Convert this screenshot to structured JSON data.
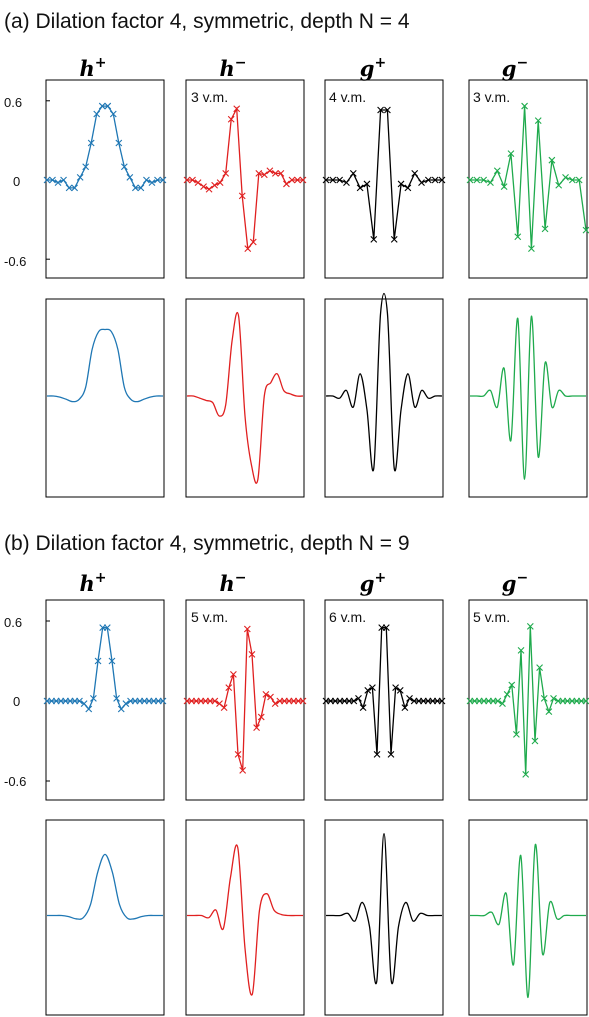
{
  "colors": {
    "blue": "#1f77b4",
    "red": "#e02020",
    "black": "#000000",
    "green": "#1faa4d"
  },
  "sections": [
    {
      "title": "(a) Dilation factor 4, symmetric, depth N = 4",
      "columns": [
        {
          "symbol": "h",
          "sup": "+",
          "color": "blue"
        },
        {
          "symbol": "h",
          "sup": "−",
          "color": "red"
        },
        {
          "symbol": "g",
          "sup": "+",
          "color": "black"
        },
        {
          "symbol": "g",
          "sup": "−",
          "color": "green"
        }
      ],
      "y_ticks": [
        "0.6",
        "0",
        "-0.6"
      ],
      "vm_labels": [
        "",
        "3 v.m.",
        "4 v.m.",
        "3 v.m."
      ]
    },
    {
      "title": "(b) Dilation factor 4, symmetric, depth N = 9",
      "columns": [
        {
          "symbol": "h",
          "sup": "+",
          "color": "blue"
        },
        {
          "symbol": "h",
          "sup": "−",
          "color": "red"
        },
        {
          "symbol": "g",
          "sup": "+",
          "color": "black"
        },
        {
          "symbol": "g",
          "sup": "−",
          "color": "green"
        }
      ],
      "y_ticks": [
        "0.6",
        "0",
        "-0.6"
      ],
      "vm_labels": [
        "",
        "5 v.m.",
        "6 v.m.",
        "5 v.m."
      ]
    }
  ],
  "chart_data": [
    {
      "type": "line",
      "section": "a",
      "panel": "h+ filter",
      "ylim": [
        -0.75,
        0.75
      ],
      "markers": "x",
      "values": [
        0,
        0,
        -0.02,
        0,
        -0.06,
        -0.06,
        0.02,
        0.1,
        0.28,
        0.5,
        0.56,
        0.56,
        0.5,
        0.28,
        0.1,
        0.02,
        -0.06,
        -0.06,
        0,
        -0.02,
        0,
        0
      ]
    },
    {
      "type": "line",
      "section": "a",
      "panel": "h- filter",
      "ylim": [
        -0.75,
        0.75
      ],
      "markers": "x",
      "values": [
        0,
        0,
        -0.02,
        -0.05,
        -0.07,
        -0.04,
        -0.02,
        0.05,
        0.46,
        0.54,
        -0.12,
        -0.52,
        -0.47,
        0.05,
        0.04,
        0.07,
        0.05,
        0.05,
        -0.03,
        0,
        0,
        0
      ]
    },
    {
      "type": "line",
      "section": "a",
      "panel": "g+ filter",
      "ylim": [
        -0.75,
        0.75
      ],
      "markers": "x",
      "values": [
        0,
        0,
        0,
        -0.02,
        0.05,
        -0.06,
        -0.03,
        -0.45,
        0.53,
        0.53,
        -0.45,
        -0.03,
        -0.06,
        0.05,
        -0.02,
        0,
        0,
        0
      ]
    },
    {
      "type": "line",
      "section": "a",
      "panel": "g- filter",
      "ylim": [
        -0.75,
        0.75
      ],
      "markers": "x",
      "values": [
        0,
        0,
        0,
        -0.02,
        0.07,
        -0.05,
        0.2,
        -0.43,
        0.56,
        -0.52,
        0.45,
        -0.37,
        0.15,
        -0.04,
        0.02,
        0,
        0,
        -0.38
      ]
    },
    {
      "type": "line",
      "section": "a",
      "panel": "h+ limit",
      "markers": "none",
      "values": [
        0,
        0,
        -0.01,
        -0.03,
        -0.05,
        -0.03,
        0.08,
        0.42,
        0.58,
        0.6,
        0.58,
        0.42,
        0.08,
        -0.03,
        -0.05,
        -0.03,
        -0.01,
        0,
        0
      ]
    },
    {
      "type": "line",
      "section": "a",
      "panel": "h- limit",
      "markers": "none",
      "values": [
        0,
        0,
        -0.02,
        -0.04,
        -0.06,
        -0.18,
        -0.08,
        0.5,
        0.72,
        -0.18,
        -0.62,
        -0.75,
        0.0,
        0.12,
        0.2,
        0.05,
        0.02,
        0,
        0
      ]
    },
    {
      "type": "line",
      "section": "a",
      "panel": "g+ limit",
      "markers": "none",
      "values": [
        0,
        0,
        -0.02,
        0.05,
        -0.1,
        0.2,
        -0.12,
        -0.65,
        0.75,
        0.75,
        -0.65,
        -0.12,
        0.2,
        -0.1,
        0.05,
        -0.02,
        0,
        0
      ]
    },
    {
      "type": "line",
      "section": "a",
      "panel": "g- limit",
      "markers": "none",
      "values": [
        0,
        0,
        0,
        0.05,
        -0.1,
        0.25,
        -0.4,
        0.7,
        -0.75,
        0.72,
        -0.55,
        0.3,
        -0.1,
        0.05,
        0,
        0,
        0,
        0
      ]
    },
    {
      "type": "line",
      "section": "b",
      "panel": "h+ filter",
      "ylim": [
        -0.75,
        0.75
      ],
      "markers": "x",
      "values": [
        0,
        0,
        0,
        0,
        0,
        0,
        0,
        0,
        -0.02,
        -0.06,
        0.02,
        0.3,
        0.55,
        0.55,
        0.3,
        0.02,
        -0.06,
        -0.02,
        0,
        0,
        0,
        0,
        0,
        0,
        0,
        0
      ]
    },
    {
      "type": "line",
      "section": "b",
      "panel": "h- filter",
      "ylim": [
        -0.75,
        0.75
      ],
      "markers": "x",
      "values": [
        0,
        0,
        0,
        0,
        0,
        0,
        0,
        -0.02,
        -0.05,
        0.1,
        0.2,
        -0.4,
        -0.52,
        0.54,
        0.35,
        -0.2,
        -0.12,
        0.05,
        0.03,
        -0.02,
        0,
        0,
        0,
        0,
        0,
        0
      ]
    },
    {
      "type": "line",
      "section": "b",
      "panel": "g+ filter",
      "ylim": [
        -0.75,
        0.75
      ],
      "markers": "x",
      "values": [
        0,
        0,
        0,
        0,
        0,
        0,
        0,
        0.02,
        -0.05,
        0.08,
        0.1,
        -0.4,
        0.55,
        0.55,
        -0.4,
        0.1,
        0.08,
        -0.05,
        0.02,
        0,
        0,
        0,
        0,
        0,
        0,
        0
      ]
    },
    {
      "type": "line",
      "section": "b",
      "panel": "g- filter",
      "ylim": [
        -0.75,
        0.75
      ],
      "markers": "x",
      "values": [
        0,
        0,
        0,
        0,
        0,
        0,
        0,
        -0.02,
        0.05,
        0.12,
        -0.25,
        0.38,
        -0.55,
        0.56,
        -0.3,
        0.25,
        0.02,
        -0.08,
        0.02,
        0,
        0,
        0,
        0,
        0,
        0,
        0
      ]
    },
    {
      "type": "line",
      "section": "b",
      "panel": "h+ limit",
      "markers": "none",
      "values": [
        0,
        0,
        0,
        -0.01,
        -0.03,
        -0.02,
        0.1,
        0.4,
        0.56,
        0.4,
        0.1,
        -0.02,
        -0.03,
        -0.01,
        0,
        0,
        0
      ]
    },
    {
      "type": "line",
      "section": "b",
      "panel": "h- limit",
      "markers": "none",
      "values": [
        0,
        0,
        0,
        -0.02,
        0.05,
        -0.12,
        0.35,
        0.62,
        -0.3,
        -0.72,
        0.05,
        0.2,
        0.05,
        0.01,
        0,
        0,
        0
      ]
    },
    {
      "type": "line",
      "section": "b",
      "panel": "g+ limit",
      "markers": "none",
      "values": [
        0,
        0,
        0,
        0.02,
        -0.05,
        0.12,
        -0.1,
        -0.6,
        0.75,
        -0.6,
        -0.1,
        0.12,
        -0.05,
        0.02,
        0,
        0,
        0
      ]
    },
    {
      "type": "line",
      "section": "b",
      "panel": "g- limit",
      "markers": "none",
      "values": [
        0,
        0,
        0,
        0.03,
        -0.08,
        0.2,
        -0.45,
        0.55,
        -0.75,
        0.65,
        -0.35,
        0.12,
        -0.03,
        0,
        0,
        0,
        0
      ]
    }
  ]
}
